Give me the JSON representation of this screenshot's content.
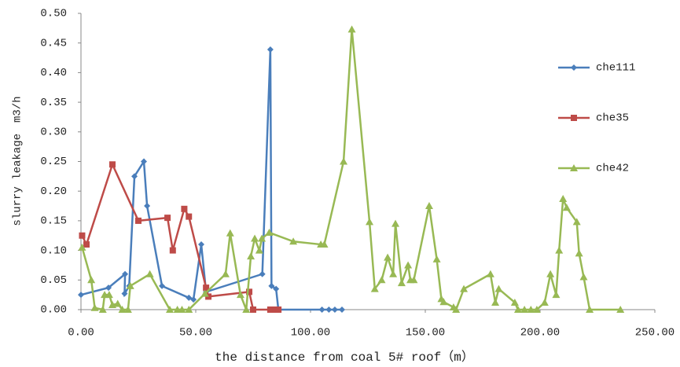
{
  "chart_data": {
    "type": "line",
    "x_label": "the distance from coal 5# roof（m）",
    "y_label": "slurry leakage　m3/h",
    "xlim": [
      0,
      250
    ],
    "xticks": [
      {
        "value": 0,
        "label": "0.00"
      },
      {
        "value": 50,
        "label": "50.00"
      },
      {
        "value": 100,
        "label": "100.00"
      },
      {
        "value": 150,
        "label": "150.00"
      },
      {
        "value": 200,
        "label": "200.00"
      },
      {
        "value": 250,
        "label": "250.00"
      }
    ],
    "ylim": [
      0,
      0.5
    ],
    "yticks": [
      {
        "value": 0,
        "label": "0.00"
      },
      0.05,
      {
        "value": 0.1,
        "label": "0.10"
      },
      0.15,
      {
        "value": 0.2,
        "label": "0.20"
      },
      0.25,
      {
        "value": 0.3,
        "label": "0.30"
      },
      0.35,
      {
        "value": 0.4,
        "label": "0.40"
      },
      0.45,
      {
        "value": 0.5,
        "label": "0.50"
      }
    ],
    "grid": false,
    "legend": "right",
    "series": [
      {
        "name": "che111",
        "color": "#4a7ebb",
        "marker": "diamond",
        "x": [
          0,
          12,
          19.2,
          19,
          21,
          23.3,
          27.4,
          28.8,
          35.3,
          47,
          49,
          52.4,
          54.5,
          79,
          82.5,
          83,
          85,
          86,
          105,
          108,
          110.6,
          113.7
        ],
        "values": [
          0.025,
          0.037,
          0.06,
          0.027,
          0.04,
          0.225,
          0.25,
          0.175,
          0.04,
          0.02,
          0.017,
          0.11,
          0.03,
          0.06,
          0.439,
          0.04,
          0.035,
          0,
          0,
          0,
          0,
          0
        ]
      },
      {
        "name": "che35",
        "color": "#be4b48",
        "marker": "square",
        "x": [
          0.5,
          2.4,
          13.7,
          25,
          37.7,
          40,
          45,
          47,
          54.5,
          55.5,
          73.3,
          75,
          82.5,
          84.6,
          86
        ],
        "values": [
          0.125,
          0.11,
          0.245,
          0.15,
          0.155,
          0.1,
          0.17,
          0.157,
          0.037,
          0.022,
          0.03,
          0,
          0,
          0,
          0
        ]
      },
      {
        "name": "che42",
        "color": "#98b954",
        "marker": "triangle",
        "x": [
          0.5,
          4.5,
          6,
          9.5,
          10.3,
          12.3,
          13.7,
          16,
          18,
          20.5,
          21.5,
          30,
          38.7,
          42,
          44,
          47,
          54,
          63,
          65,
          69.5,
          72,
          74,
          75.7,
          77.7,
          78.8,
          82,
          92.5,
          104.5,
          106,
          114.4,
          118,
          125.7,
          128,
          131,
          133.6,
          136,
          137,
          139.7,
          142.5,
          143.5,
          145,
          151.7,
          155,
          157,
          158,
          162.3,
          163.4,
          166.8,
          178.4,
          180.5,
          182,
          189,
          190.4,
          193.2,
          196,
          198.6,
          202,
          204.5,
          207,
          208.3,
          210,
          211.6,
          216,
          217,
          219,
          221.6,
          235
        ],
        "values": [
          0.105,
          0.05,
          0.003,
          0,
          0.025,
          0.025,
          0.008,
          0.01,
          0,
          0,
          0.04,
          0.06,
          0,
          0,
          0,
          0,
          0.027,
          0.06,
          0.129,
          0.025,
          0,
          0.09,
          0.12,
          0.1,
          0.12,
          0.13,
          0.115,
          0.11,
          0.11,
          0.25,
          0.473,
          0.148,
          0.035,
          0.05,
          0.088,
          0.06,
          0.145,
          0.045,
          0.075,
          0.05,
          0.05,
          0.175,
          0.085,
          0.018,
          0.013,
          0.004,
          0,
          0.035,
          0.06,
          0.012,
          0.035,
          0.012,
          0,
          0,
          0,
          0,
          0.012,
          0.06,
          0.025,
          0.1,
          0.187,
          0.172,
          0.148,
          0.095,
          0.055,
          0,
          0
        ]
      }
    ]
  }
}
